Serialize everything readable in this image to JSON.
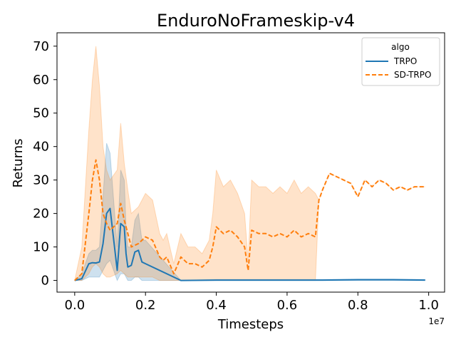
{
  "chart_data": {
    "type": "line",
    "title": "EnduroNoFrameskip-v4",
    "xlabel": "Timesteps",
    "ylabel": "Returns",
    "x_scale_label": "1e7",
    "xlim": [
      -0.05,
      1.045
    ],
    "ylim": [
      -3.5,
      74
    ],
    "x_ticks": [
      0.0,
      0.2,
      0.4,
      0.6,
      0.8,
      1.0
    ],
    "x_tick_labels": [
      "0.0",
      "0.2",
      "0.4",
      "0.6",
      "0.8",
      "1.0"
    ],
    "y_ticks": [
      0,
      10,
      20,
      30,
      40,
      50,
      60,
      70
    ],
    "y_tick_labels": [
      "0",
      "10",
      "20",
      "30",
      "40",
      "50",
      "60",
      "70"
    ],
    "grid": false,
    "legend": {
      "title": "algo",
      "position": "top-right"
    },
    "series": [
      {
        "name": "TRPO",
        "color": "#1f77b4",
        "style": "solid",
        "x": [
          0.0,
          0.02,
          0.04,
          0.05,
          0.06,
          0.07,
          0.08,
          0.09,
          0.1,
          0.12,
          0.13,
          0.14,
          0.145,
          0.15,
          0.16,
          0.17,
          0.18,
          0.19,
          0.2,
          0.3,
          0.4,
          0.5,
          0.6,
          0.7,
          0.8,
          0.9,
          0.99
        ],
        "y": [
          0.0,
          0.5,
          5.0,
          5.3,
          5.2,
          5.5,
          11.0,
          20.0,
          21.5,
          3.0,
          17.0,
          16.0,
          8.0,
          4.0,
          4.5,
          8.5,
          9.0,
          5.5,
          5.0,
          0.0,
          0.1,
          0.1,
          0.1,
          0.1,
          0.2,
          0.2,
          0.1
        ],
        "lower": [
          0.0,
          0.0,
          1.0,
          1.0,
          1.0,
          1.0,
          3.0,
          5.0,
          6.0,
          0.0,
          2.0,
          2.0,
          1.0,
          0.0,
          0.0,
          1.0,
          1.0,
          0.0,
          0.0,
          0.0,
          0.0,
          0.0,
          0.0,
          0.0,
          0.0,
          0.0,
          0.0
        ],
        "upper": [
          0.0,
          2.0,
          8.0,
          9.0,
          9.0,
          10.0,
          25.0,
          41.0,
          38.0,
          10.0,
          33.0,
          30.0,
          16.0,
          10.0,
          10.0,
          18.0,
          20.0,
          12.0,
          12.0,
          0.0,
          0.3,
          0.3,
          0.3,
          0.3,
          0.4,
          0.4,
          0.3
        ]
      },
      {
        "name": "SD-TRPO",
        "color": "#ff7f0e",
        "style": "dashed",
        "x": [
          0.0,
          0.02,
          0.04,
          0.05,
          0.06,
          0.07,
          0.08,
          0.09,
          0.1,
          0.12,
          0.13,
          0.14,
          0.15,
          0.16,
          0.18,
          0.2,
          0.22,
          0.24,
          0.25,
          0.26,
          0.28,
          0.3,
          0.32,
          0.34,
          0.36,
          0.38,
          0.39,
          0.4,
          0.42,
          0.44,
          0.46,
          0.48,
          0.49,
          0.5,
          0.52,
          0.54,
          0.56,
          0.58,
          0.6,
          0.62,
          0.64,
          0.66,
          0.68,
          0.69,
          0.7,
          0.72,
          0.74,
          0.76,
          0.78,
          0.8,
          0.82,
          0.84,
          0.86,
          0.88,
          0.9,
          0.92,
          0.94,
          0.96,
          0.99
        ],
        "y": [
          0.0,
          2.0,
          20.0,
          30.0,
          36.0,
          30.0,
          20.0,
          17.0,
          15.0,
          17.0,
          23.0,
          18.0,
          14.0,
          10.0,
          11.0,
          13.0,
          12.0,
          7.0,
          6.0,
          7.0,
          2.0,
          7.0,
          5.0,
          5.0,
          4.0,
          6.0,
          10.0,
          16.0,
          14.0,
          15.0,
          13.0,
          10.0,
          3.0,
          15.0,
          14.0,
          14.0,
          13.0,
          14.0,
          13.0,
          15.0,
          13.0,
          14.0,
          13.0,
          24.0,
          27.0,
          32.0,
          31.0,
          30.0,
          29.0,
          25.0,
          30.0,
          28.0,
          30.0,
          29.0,
          27.0,
          28.0,
          27.0,
          28.0,
          28.0
        ],
        "lower": [
          0.0,
          0.0,
          2.0,
          4.0,
          5.0,
          4.0,
          2.0,
          1.0,
          1.0,
          2.0,
          3.0,
          2.0,
          1.0,
          1.0,
          1.0,
          1.0,
          1.0,
          0.0,
          0.0,
          0.0,
          0.0,
          0.0,
          0.0,
          0.0,
          0.0,
          0.0,
          0.0,
          0.0,
          0.0,
          0.0,
          0.0,
          0.0,
          0.0,
          0.0,
          0.0,
          0.0,
          0.0,
          0.0,
          0.0,
          0.0,
          0.0,
          0.0,
          0.0,
          24.0,
          27.0,
          32.0,
          31.0,
          30.0,
          29.0,
          25.0,
          30.0,
          28.0,
          30.0,
          29.0,
          27.0,
          28.0,
          27.0,
          28.0,
          28.0
        ],
        "upper": [
          0.0,
          10.0,
          45.0,
          60.0,
          70.0,
          58.0,
          40.0,
          33.0,
          30.0,
          33.0,
          47.0,
          35.0,
          27.0,
          20.0,
          22.0,
          26.0,
          24.0,
          14.0,
          12.0,
          14.0,
          5.0,
          14.0,
          10.0,
          10.0,
          8.0,
          12.0,
          20.0,
          33.0,
          28.0,
          30.0,
          26.0,
          20.0,
          6.0,
          30.0,
          28.0,
          28.0,
          26.0,
          28.0,
          26.0,
          30.0,
          26.0,
          28.0,
          26.0,
          24.0,
          27.0,
          32.0,
          31.0,
          30.0,
          29.0,
          25.0,
          30.0,
          28.0,
          30.0,
          29.0,
          27.0,
          28.0,
          27.0,
          28.0,
          28.0
        ]
      }
    ]
  }
}
